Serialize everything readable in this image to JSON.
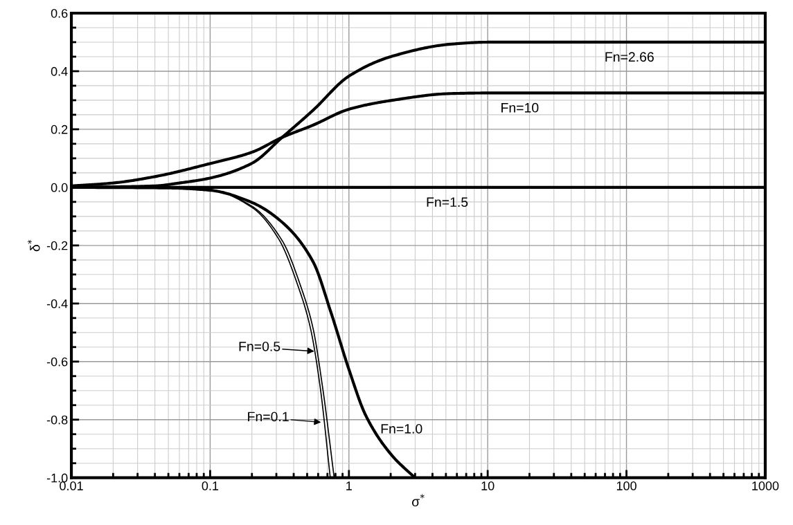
{
  "chart_data": {
    "type": "line",
    "xlabel": "σ$^{*}$",
    "ylabel": "δ$^{*}$",
    "log": "x",
    "grid": true,
    "legend": false,
    "marker": "none",
    "line_style": "solid",
    "xlim": [
      0.01,
      1000
    ],
    "xticks": [
      0.01,
      0.1,
      1,
      10,
      100,
      1000
    ],
    "ylim": [
      -1.0,
      0.6
    ],
    "yticks": [
      {
        "value": -1.0,
        "label": "-1.0"
      },
      {
        "value": -0.8,
        "label": "-0.8"
      },
      {
        "value": -0.6,
        "label": "-0.6"
      },
      {
        "value": -0.4,
        "label": "-0.4"
      },
      {
        "value": -0.2,
        "label": "-0.2"
      },
      {
        "value": 0,
        "label": "0.0"
      },
      {
        "value": 0.2,
        "label": "0.2"
      },
      {
        "value": 0.4,
        "label": "0.4"
      },
      {
        "value": 0.6,
        "label": "0.6"
      }
    ],
    "series": [
      {
        "color": "#000000",
        "x": [
          0.01,
          0.04,
          0.06,
          0.1,
          0.2,
          0.33,
          0.55,
          1,
          2,
          5.4,
          10,
          1000
        ],
        "values": [
          0.0,
          0.005,
          0.015,
          0.032,
          0.083,
          0.172,
          0.265,
          0.383,
          0.45,
          0.493,
          0.5,
          0.5
        ]
      },
      {
        "color": "#000000",
        "x": [
          0.01,
          0.02,
          0.04,
          0.1,
          0.2,
          0.33,
          0.55,
          1,
          2,
          5.4,
          10,
          1000
        ],
        "values": [
          0.005,
          0.015,
          0.037,
          0.082,
          0.121,
          0.172,
          0.214,
          0.269,
          0.299,
          0.323,
          0.325,
          0.325
        ]
      },
      {
        "color": "#000000",
        "x": [
          0.01,
          1000
        ],
        "values": [
          0.0,
          0.0
        ]
      },
      {
        "color": "#000000",
        "x": [
          0.01,
          0.05,
          0.1,
          0.2,
          0.33,
          0.55,
          0.745,
          1,
          1.33,
          2.04,
          2.99
        ],
        "values": [
          0.0,
          -0.002,
          -0.01,
          -0.052,
          -0.12,
          -0.255,
          -0.433,
          -0.627,
          -0.788,
          -0.923,
          -1.0
        ]
      },
      {
        "color": "#000000",
        "x": [
          0.01,
          0.05,
          0.1,
          0.2,
          0.33,
          0.449,
          0.55,
          0.645,
          0.783
        ],
        "values": [
          0.0,
          -0.002,
          -0.008,
          -0.065,
          -0.183,
          -0.34,
          -0.483,
          -0.686,
          -1.0
        ]
      },
      {
        "color": "#000000",
        "x": [
          0.01,
          0.05,
          0.1,
          0.2,
          0.312,
          0.43,
          0.527,
          0.62,
          0.734
        ],
        "values": [
          0.0,
          -0.002,
          -0.008,
          -0.069,
          -0.178,
          -0.34,
          -0.483,
          -0.686,
          -1.0
        ]
      }
    ],
    "annotations": [
      {
        "text": "Fn=2.66",
        "x": 105,
        "y": 0.5
      },
      {
        "text": "Fn=10",
        "x": 17,
        "y": 0.325
      },
      {
        "text": "Fn=1.5",
        "x": 5.1,
        "y": 0
      },
      {
        "text": "Fn=1.0",
        "x": 2.04,
        "y": -0.923
      },
      {
        "text": "Fn=0.5",
        "x": 0.59,
        "y": -0.565
      },
      {
        "text": "Fn=0.1",
        "x": 0.66,
        "y": -0.81
      }
    ]
  }
}
